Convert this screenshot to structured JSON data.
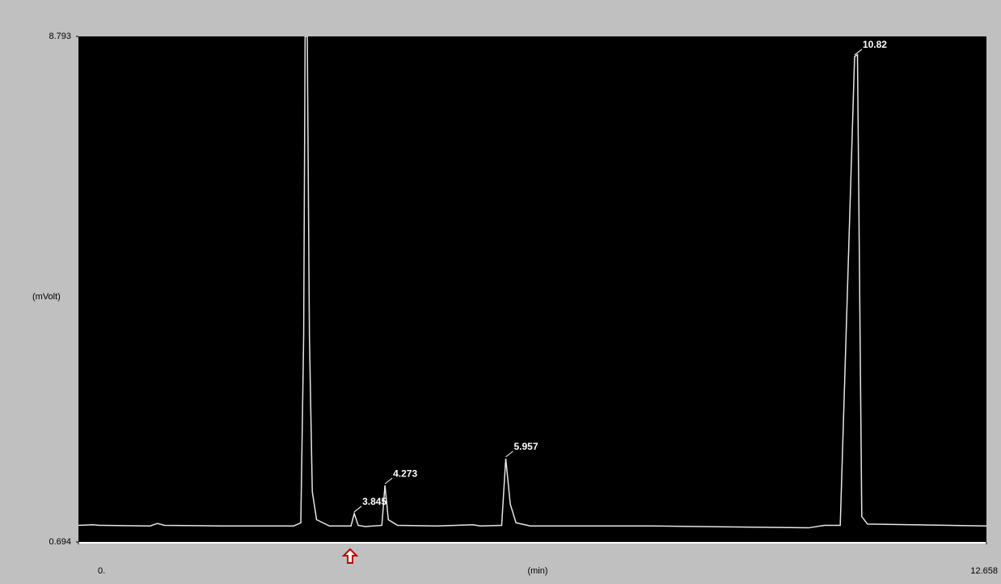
{
  "chart_data": {
    "type": "line",
    "xlabel": "(min)",
    "ylabel": "(mVolt)",
    "xlim": [
      0,
      12.658
    ],
    "ylim": [
      0.694,
      8.793
    ],
    "xticks": [
      {
        "value": 0,
        "label": "0."
      },
      12.658
    ],
    "yticks": [
      0.694,
      8.793
    ],
    "series": [
      {
        "color": "#e6e6e6",
        "x": [
          0,
          0.2,
          0.3,
          1.0,
          1.1,
          1.2,
          2.0,
          3.0,
          3.1,
          3.14,
          3.16,
          3.19,
          3.22,
          3.26,
          3.32,
          3.5,
          3.8,
          3.845,
          3.9,
          4.0,
          4.23,
          4.273,
          4.32,
          4.45,
          5.0,
          5.5,
          5.6,
          5.9,
          5.957,
          6.02,
          6.1,
          6.3,
          8.0,
          10.18,
          10.4,
          10.62,
          10.82,
          10.86,
          10.92,
          11.0,
          12.658
        ],
        "values": [
          0.96,
          0.97,
          0.96,
          0.95,
          0.99,
          0.96,
          0.95,
          0.95,
          1.0,
          4.0,
          8.793,
          8.793,
          4.0,
          1.5,
          1.05,
          0.95,
          0.95,
          1.15,
          0.96,
          0.94,
          0.96,
          1.6,
          1.05,
          0.96,
          0.95,
          0.97,
          0.95,
          0.96,
          2.03,
          1.3,
          1.0,
          0.95,
          0.95,
          0.92,
          0.96,
          0.96,
          8.47,
          8.5,
          1.1,
          0.98,
          0.95
        ]
      }
    ],
    "annotations": [
      3.845,
      4.273,
      5.957,
      10.82
    ]
  }
}
